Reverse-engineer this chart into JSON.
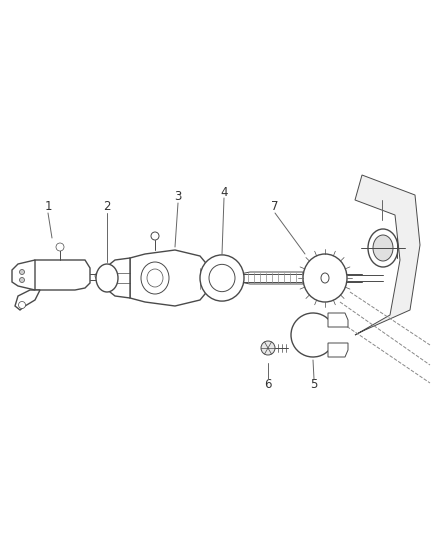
{
  "background_color": "#ffffff",
  "line_color": "#4a4a4a",
  "label_color": "#333333",
  "fig_width": 4.38,
  "fig_height": 5.33,
  "dpi": 100,
  "label_fontsize": 8.5
}
